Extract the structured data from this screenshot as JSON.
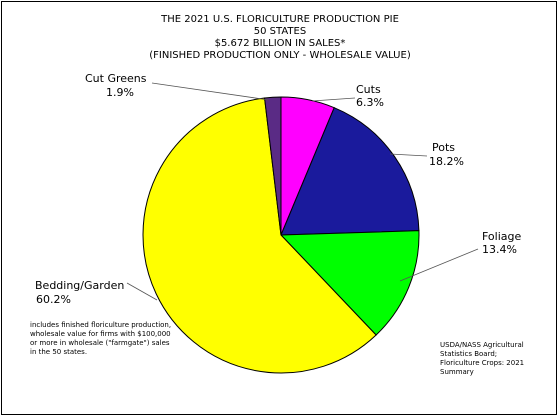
{
  "chart_data": {
    "type": "pie",
    "title_lines": [
      "THE 2021 U.S. FLORICULTURE PRODUCTION PIE",
      "50 STATES",
      "$5.672 BILLION IN SALES*",
      "(FINISHED PRODUCTION ONLY - WHOLESALE VALUE)"
    ],
    "slices": [
      {
        "name": "Cuts",
        "value": 6.3,
        "value_label": "6.3%",
        "color": "#ff00ff"
      },
      {
        "name": "Pots",
        "value": 18.2,
        "value_label": "18.2%",
        "color": "#1a1a9c"
      },
      {
        "name": "Foliage",
        "value": 13.4,
        "value_label": "13.4%",
        "color": "#00ff00"
      },
      {
        "name": "Bedding/Garden",
        "value": 60.2,
        "value_label": "60.2%",
        "color": "#ffff00"
      },
      {
        "name": "Cut Greens",
        "value": 1.9,
        "value_label": "1.9%",
        "color": "#5a2b85"
      }
    ],
    "footnote_lines": [
      "includes finished floriculture production,",
      "wholesale value for firms with $100,000",
      "or more in wholesale (\"farmgate\") sales",
      "in the 50 states."
    ],
    "source_lines": [
      "USDA/NASS Agricultural",
      "Statistics Board;",
      "Floriculture Crops: 2021",
      "Summary"
    ]
  }
}
